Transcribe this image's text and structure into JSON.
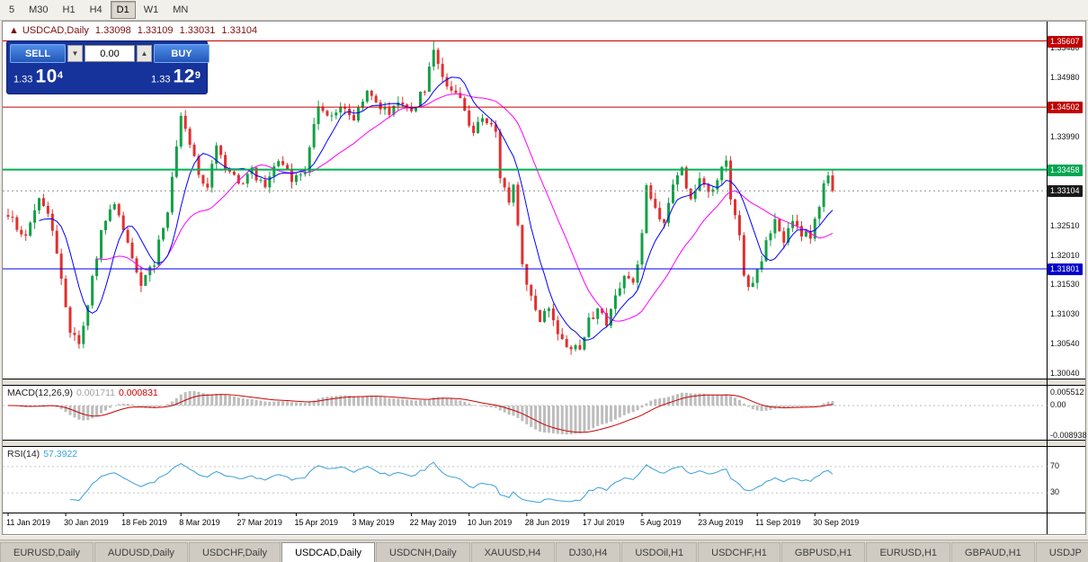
{
  "toolbar": {
    "timeframes": [
      "5",
      "M30",
      "H1",
      "H4",
      "D1",
      "W1",
      "MN"
    ],
    "active": "D1"
  },
  "chart_header": {
    "marker_icon": "▲",
    "symbol": "USDCAD,Daily",
    "open": "1.33098",
    "high": "1.33109",
    "low": "1.33031",
    "close": "1.33104"
  },
  "trade_panel": {
    "sell_label": "SELL",
    "buy_label": "BUY",
    "lot": "0.00",
    "lot_down_icon": "▼",
    "lot_up_icon": "▲",
    "sell_price": {
      "prefix": "1.33",
      "big": "10",
      "sup": "4"
    },
    "buy_price": {
      "prefix": "1.33",
      "big": "12",
      "sup": "9"
    }
  },
  "price_axis": {
    "labels": [
      {
        "text": "1.35480",
        "price": 1.3548
      },
      {
        "text": "1.34980",
        "price": 1.3498
      },
      {
        "text": "1.33990",
        "price": 1.3399
      },
      {
        "text": "1.32510",
        "price": 1.3251
      },
      {
        "text": "1.32010",
        "price": 1.3201
      },
      {
        "text": "1.31530",
        "price": 1.3153
      },
      {
        "text": "1.31030",
        "price": 1.3103
      },
      {
        "text": "1.30540",
        "price": 1.3054
      },
      {
        "text": "1.30040",
        "price": 1.3004
      }
    ],
    "badges": [
      {
        "text": "1.35607",
        "price": 1.35607,
        "bg": "#c00000"
      },
      {
        "text": "1.34502",
        "price": 1.34502,
        "bg": "#c00000"
      },
      {
        "text": "1.33458",
        "price": 1.33458,
        "bg": "#00a551"
      },
      {
        "text": "1.33104",
        "price": 1.33104,
        "bg": "#1a1a1a"
      },
      {
        "text": "1.31801",
        "price": 1.31801,
        "bg": "#0000cc"
      }
    ]
  },
  "chart_data": {
    "type": "candlestick",
    "symbol": "USDCAD",
    "timeframe": "Daily",
    "last_ohlc": {
      "open": 1.33098,
      "high": 1.33109,
      "low": 1.33031,
      "close": 1.33104
    },
    "price_range": {
      "max": 1.3593,
      "min": 1.2997
    },
    "candle_count": 187,
    "up_color": "#14a046",
    "down_color": "#e03030",
    "ma_fast": {
      "period": 8,
      "color": "#0000ff"
    },
    "ma_slow": {
      "period": 21,
      "color": "#ff00ff"
    },
    "anchors": [
      [
        0,
        1.327
      ],
      [
        4,
        1.3235
      ],
      [
        7,
        1.3298
      ],
      [
        10,
        1.325
      ],
      [
        14,
        1.3072
      ],
      [
        16,
        1.306
      ],
      [
        18,
        1.3125
      ],
      [
        21,
        1.324
      ],
      [
        24,
        1.3288
      ],
      [
        27,
        1.3218
      ],
      [
        30,
        1.3158
      ],
      [
        33,
        1.3192
      ],
      [
        36,
        1.3282
      ],
      [
        39,
        1.3428
      ],
      [
        41,
        1.3388
      ],
      [
        43,
        1.3342
      ],
      [
        45,
        1.3312
      ],
      [
        47,
        1.3388
      ],
      [
        49,
        1.3348
      ],
      [
        52,
        1.3322
      ],
      [
        55,
        1.3342
      ],
      [
        58,
        1.3322
      ],
      [
        61,
        1.3362
      ],
      [
        64,
        1.333
      ],
      [
        67,
        1.3342
      ],
      [
        70,
        1.3452
      ],
      [
        72,
        1.3428
      ],
      [
        75,
        1.3452
      ],
      [
        78,
        1.3432
      ],
      [
        81,
        1.3478
      ],
      [
        83,
        1.3452
      ],
      [
        86,
        1.3442
      ],
      [
        89,
        1.3462
      ],
      [
        91,
        1.344
      ],
      [
        94,
        1.3482
      ],
      [
        96,
        1.3542
      ],
      [
        98,
        1.3498
      ],
      [
        101,
        1.3478
      ],
      [
        103,
        1.344
      ],
      [
        105,
        1.3402
      ],
      [
        107,
        1.3438
      ],
      [
        110,
        1.3408
      ],
      [
        111,
        1.3332
      ],
      [
        113,
        1.3292
      ],
      [
        114,
        1.3318
      ],
      [
        116,
        1.3182
      ],
      [
        118,
        1.3132
      ],
      [
        120,
        1.3092
      ],
      [
        122,
        1.3112
      ],
      [
        125,
        1.3062
      ],
      [
        127,
        1.3042
      ],
      [
        129,
        1.3052
      ],
      [
        131,
        1.3092
      ],
      [
        133,
        1.3112
      ],
      [
        135,
        1.3092
      ],
      [
        137,
        1.3132
      ],
      [
        139,
        1.3172
      ],
      [
        141,
        1.3158
      ],
      [
        143,
        1.3232
      ],
      [
        144,
        1.3318
      ],
      [
        146,
        1.3282
      ],
      [
        148,
        1.3252
      ],
      [
        150,
        1.3318
      ],
      [
        152,
        1.3342
      ],
      [
        154,
        1.3302
      ],
      [
        156,
        1.3332
      ],
      [
        158,
        1.3302
      ],
      [
        160,
        1.3322
      ],
      [
        162,
        1.3368
      ],
      [
        163,
        1.3292
      ],
      [
        165,
        1.3232
      ],
      [
        166,
        1.3162
      ],
      [
        168,
        1.3152
      ],
      [
        170,
        1.3192
      ],
      [
        171,
        1.3232
      ],
      [
        173,
        1.3256
      ],
      [
        175,
        1.3232
      ],
      [
        177,
        1.3256
      ],
      [
        179,
        1.3242
      ],
      [
        181,
        1.3232
      ],
      [
        183,
        1.3282
      ],
      [
        184,
        1.3328
      ],
      [
        185,
        1.3342
      ],
      [
        186,
        1.331
      ]
    ],
    "spikes": [
      {
        "i": 96,
        "h": 1.35607
      },
      {
        "i": 127,
        "l": 1.3037
      }
    ],
    "levels": [
      {
        "price": 1.35607,
        "color": "#c00000",
        "width": 1,
        "style": "solid"
      },
      {
        "price": 1.34502,
        "color": "#c00000",
        "width": 1,
        "style": "solid"
      },
      {
        "price": 1.33458,
        "color": "#00b050",
        "width": 2,
        "style": "solid"
      },
      {
        "price": 1.33104,
        "color": "#909090",
        "width": 1,
        "style": "dotted"
      },
      {
        "price": 1.31801,
        "color": "#0000ee",
        "width": 1,
        "style": "solid"
      }
    ],
    "macd": {
      "fast": 12,
      "slow": 26,
      "signal": 9,
      "hist_color": "#bdbdbd",
      "line_color": "#cc0000"
    },
    "rsi": {
      "period": 14,
      "color": "#3a9fd8",
      "levels": [
        70,
        30
      ]
    }
  },
  "macd_panel": {
    "label": "MACD(12,26,9)",
    "value": "0.001711",
    "signal_value": "0.000831",
    "axis_labels": {
      "top": "0.005512",
      "zero": "0.00",
      "bottom": "-0.008938"
    }
  },
  "rsi_panel": {
    "label": "RSI(14)",
    "value": "57.3922",
    "level_labels": [
      "70",
      "30"
    ]
  },
  "date_axis": {
    "tick_every": 13,
    "labels": [
      "11 Jan 2019",
      "30 Jan 2019",
      "18 Feb 2019",
      "8 Mar 2019",
      "27 Mar 2019",
      "15 Apr 2019",
      "3 May 2019",
      "22 May 2019",
      "10 Jun 2019",
      "28 Jun 2019",
      "17 Jul 2019",
      "5 Aug 2019",
      "23 Aug 2019",
      "11 Sep 2019",
      "30 Sep 2019"
    ]
  },
  "tabs": {
    "items": [
      "EURUSD,Daily",
      "AUDUSD,Daily",
      "USDCHF,Daily",
      "USDCAD,Daily",
      "USDCNH,Daily",
      "XAUUSD,H4",
      "DJ30,H4",
      "USDOil,H1",
      "USDCHF,H1",
      "GBPUSD,H1",
      "EURUSD,H1",
      "GBPAUD,H1",
      "USDJP"
    ],
    "active": "USDCAD,Daily"
  }
}
